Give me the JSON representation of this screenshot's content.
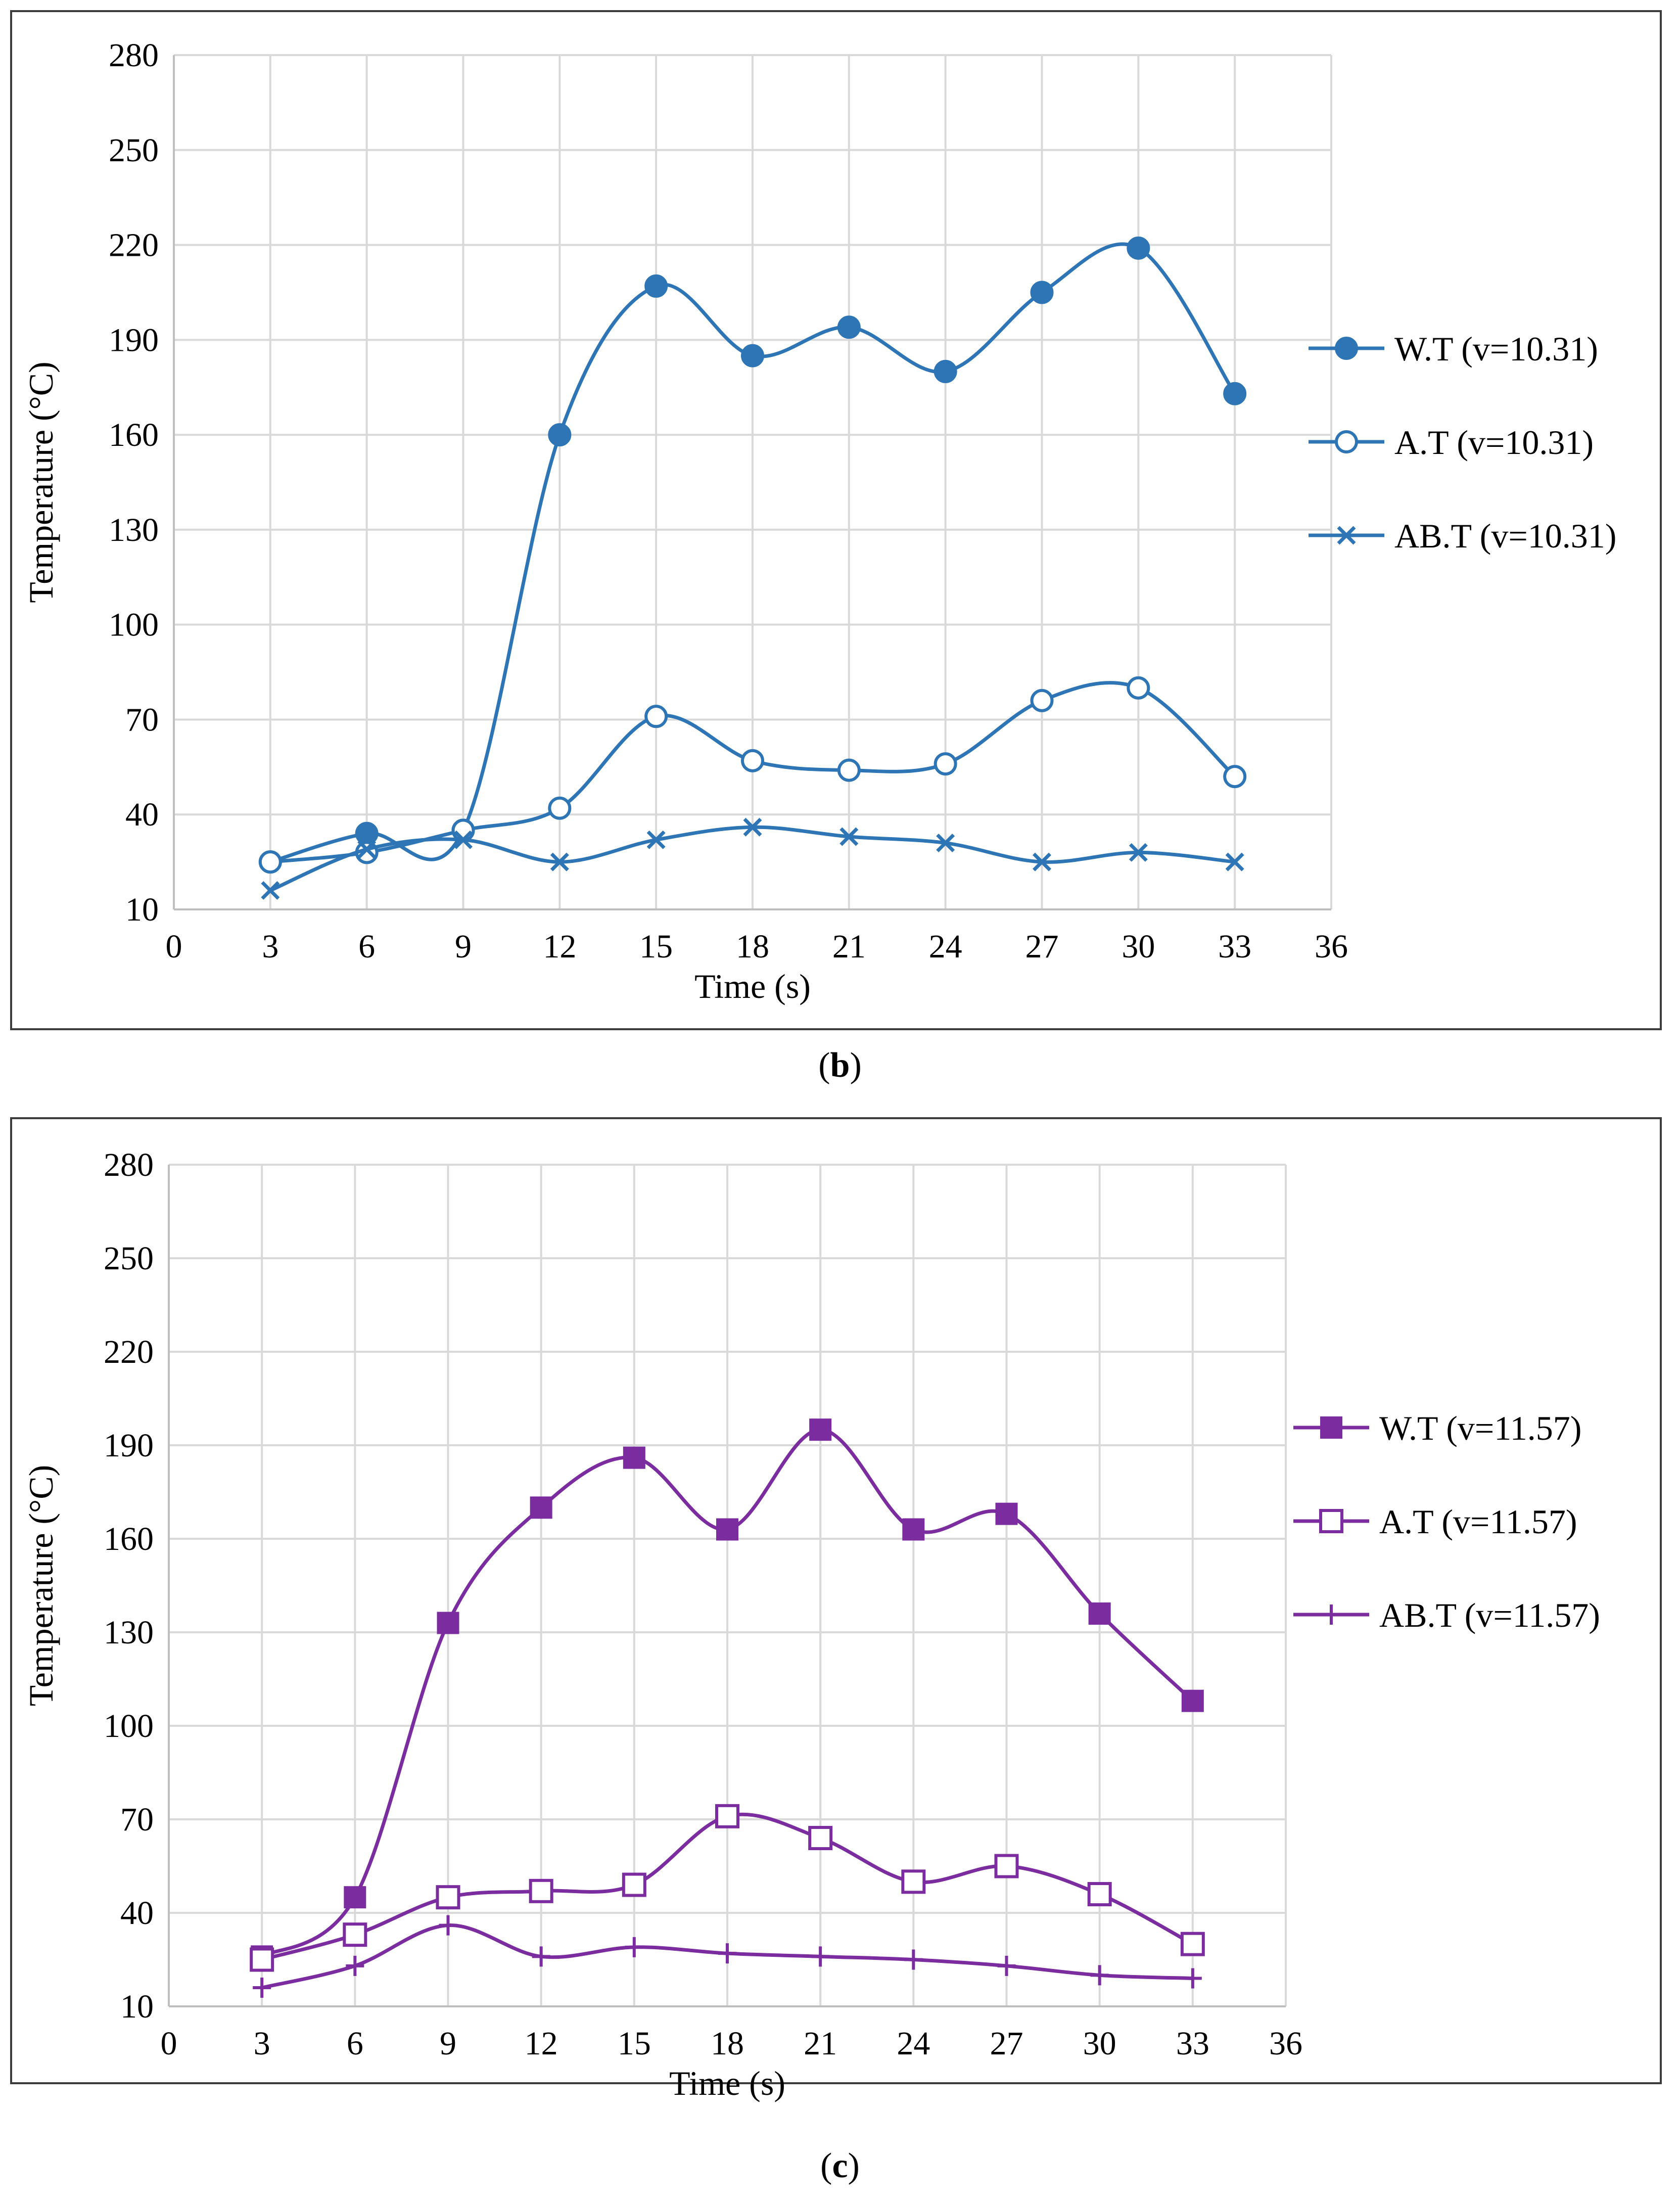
{
  "figures": [
    {
      "id": "b",
      "caption_prefix": "(",
      "caption_letter": "b",
      "caption_suffix": ")",
      "color": "#2E75B6"
    },
    {
      "id": "c",
      "caption_prefix": "(",
      "caption_letter": "c",
      "caption_suffix": ")",
      "color": "#7B2C9F"
    }
  ],
  "chart_data": [
    {
      "type": "line",
      "title": "",
      "xlabel": "Time (s)",
      "ylabel": "Temperature (°C)",
      "xlim": [
        0,
        36
      ],
      "ylim": [
        10,
        280
      ],
      "xticks": [
        0,
        3,
        6,
        9,
        12,
        15,
        18,
        21,
        24,
        27,
        30,
        33,
        36
      ],
      "yticks": [
        10,
        40,
        70,
        100,
        130,
        160,
        190,
        220,
        250,
        280
      ],
      "grid": true,
      "legend_position": "right",
      "x": [
        3,
        6,
        9,
        12,
        15,
        18,
        21,
        24,
        27,
        30,
        33
      ],
      "series": [
        {
          "name": "W.T (v=10.31)",
          "marker": "filled-circle",
          "values": [
            25,
            34,
            35,
            160,
            207,
            185,
            194,
            180,
            205,
            219,
            173
          ]
        },
        {
          "name": "A.T (v=10.31)",
          "marker": "open-circle",
          "values": [
            25,
            28,
            35,
            42,
            71,
            57,
            54,
            56,
            76,
            80,
            52
          ]
        },
        {
          "name": "AB.T (v=10.31)",
          "marker": "x",
          "values": [
            16,
            29,
            32,
            25,
            32,
            36,
            33,
            31,
            25,
            28,
            25
          ]
        }
      ]
    },
    {
      "type": "line",
      "title": "",
      "xlabel": "Time (s)",
      "ylabel": "Temperature (°C)",
      "xlim": [
        0,
        36
      ],
      "ylim": [
        10,
        280
      ],
      "xticks": [
        0,
        3,
        6,
        9,
        12,
        15,
        18,
        21,
        24,
        27,
        30,
        33,
        36
      ],
      "yticks": [
        10,
        40,
        70,
        100,
        130,
        160,
        190,
        220,
        250,
        280
      ],
      "grid": true,
      "legend_position": "right",
      "x": [
        3,
        6,
        9,
        12,
        15,
        18,
        21,
        24,
        27,
        30,
        33
      ],
      "series": [
        {
          "name": "W.T (v=11.57)",
          "marker": "filled-square",
          "values": [
            26,
            45,
            133,
            170,
            186,
            163,
            195,
            163,
            168,
            136,
            108
          ]
        },
        {
          "name": "A.T (v=11.57)",
          "marker": "open-square",
          "values": [
            25,
            33,
            45,
            47,
            49,
            71,
            64,
            50,
            55,
            46,
            30
          ]
        },
        {
          "name": "AB.T (v=11.57)",
          "marker": "plus",
          "values": [
            16,
            23,
            36,
            26,
            29,
            27,
            26,
            25,
            23,
            20,
            19
          ]
        }
      ]
    }
  ]
}
